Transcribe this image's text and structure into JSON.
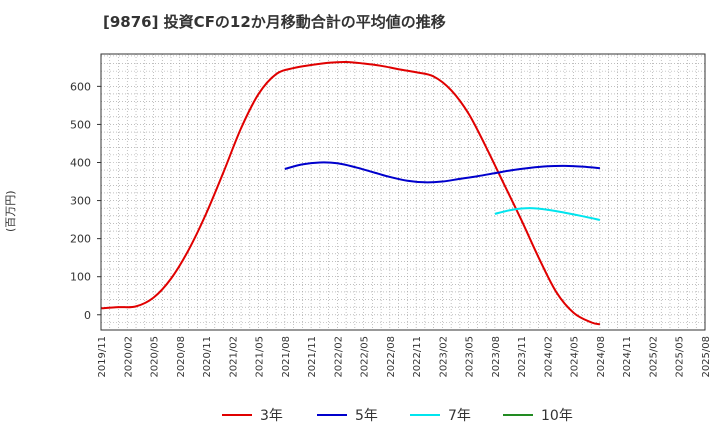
{
  "header": {
    "title": "[9876]  投資CFの12か月移動合計の平均値の推移",
    "y_unit": "(百万円)"
  },
  "chart_data": {
    "type": "line",
    "title": "[9876]  投資CFの12か月移動合計の平均値の推移",
    "ylabel": "(百万円)",
    "xlabel": "",
    "ylim": [
      -40,
      685
    ],
    "yticks": [
      0,
      100,
      200,
      300,
      400,
      500,
      600
    ],
    "grid": true,
    "legend_position": "bottom",
    "x_ticks": [
      "2019/11",
      "2020/02",
      "2020/05",
      "2020/08",
      "2020/11",
      "2021/02",
      "2021/05",
      "2021/08",
      "2021/11",
      "2022/02",
      "2022/05",
      "2022/08",
      "2022/11",
      "2023/02",
      "2023/05",
      "2023/08",
      "2023/11",
      "2024/02",
      "2024/05",
      "2024/08",
      "2024/11",
      "2025/02",
      "2025/05",
      "2025/08"
    ],
    "series": [
      {
        "name": "3年",
        "color": "#e00000",
        "x": [
          "2019/11",
          "2020/01",
          "2020/03",
          "2020/05",
          "2020/07",
          "2020/09",
          "2020/11",
          "2021/01",
          "2021/03",
          "2021/05",
          "2021/07",
          "2021/09",
          "2021/11",
          "2022/01",
          "2022/03",
          "2022/05",
          "2022/07",
          "2022/09",
          "2022/11",
          "2023/01",
          "2023/03",
          "2023/05",
          "2023/07",
          "2023/09",
          "2023/11",
          "2024/01",
          "2024/03",
          "2024/05",
          "2024/07",
          "2024/08"
        ],
        "values": [
          17,
          20,
          22,
          45,
          95,
          170,
          265,
          375,
          490,
          580,
          632,
          648,
          656,
          662,
          664,
          660,
          654,
          645,
          637,
          626,
          590,
          528,
          440,
          345,
          250,
          150,
          60,
          5,
          -20,
          -25
        ]
      },
      {
        "name": "5年",
        "color": "#0000cc",
        "x": [
          "2021/08",
          "2021/10",
          "2021/12",
          "2022/02",
          "2022/04",
          "2022/06",
          "2022/08",
          "2022/10",
          "2022/12",
          "2023/02",
          "2023/04",
          "2023/06",
          "2023/08",
          "2023/10",
          "2023/12",
          "2024/02",
          "2024/04",
          "2024/06",
          "2024/08"
        ],
        "values": [
          383,
          395,
          400,
          398,
          388,
          375,
          362,
          352,
          348,
          350,
          357,
          364,
          372,
          380,
          386,
          390,
          391,
          389,
          385
        ]
      },
      {
        "name": "7年",
        "color": "#00e5ee",
        "x": [
          "2023/08",
          "2023/10",
          "2023/12",
          "2024/02",
          "2024/04",
          "2024/06",
          "2024/08"
        ],
        "values": [
          265,
          276,
          280,
          276,
          268,
          259,
          249
        ]
      },
      {
        "name": "10年",
        "color": "#228b22",
        "x": [],
        "values": []
      }
    ]
  }
}
